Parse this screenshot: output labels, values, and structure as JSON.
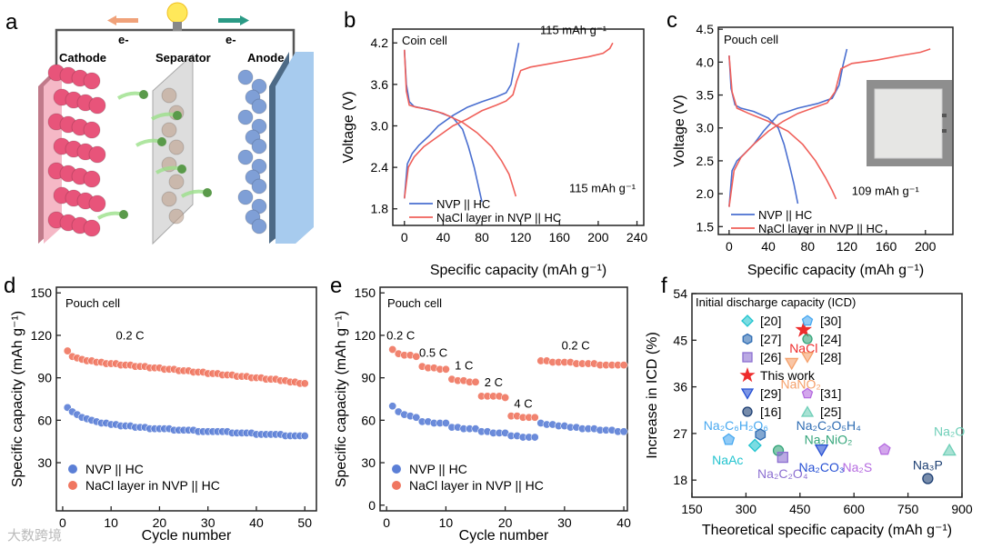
{
  "panel_letters": [
    "a",
    "b",
    "c",
    "d",
    "e",
    "f"
  ],
  "panel_a": {
    "cathode": "Cathode",
    "separator": "Separator",
    "anode": "Anode",
    "electron_left": "e-",
    "electron_right": "e-",
    "colors": {
      "cathode": "#e8547a",
      "anode": "#7f9fd6",
      "separator": "#cfcfcf",
      "arrow_left": "#f0a27a",
      "arrow_right": "#2a9a85"
    }
  },
  "watermark": "大数跨境",
  "chart_data": [
    {
      "id": "b",
      "type": "line",
      "title": "Coin cell",
      "xlabel": "Specific capacity (mAh g⁻¹)",
      "ylabel": "Voltage (V)",
      "xlim": [
        -12,
        247
      ],
      "ylim": [
        1.56,
        4.4
      ],
      "xticks": [
        0,
        40,
        80,
        120,
        160,
        200,
        240
      ],
      "yticks": [
        1.8,
        2.4,
        3.0,
        3.6,
        4.2
      ],
      "legend": [
        "NVP || HC",
        "NaCl layer in NVP || HC"
      ],
      "legend_position": "bottom-left",
      "series": [
        {
          "name": "NVP || HC charge",
          "color": "#4a6fd0",
          "x": [
            0,
            3,
            8,
            15,
            25,
            35,
            50,
            65,
            80,
            95,
            105,
            110,
            114,
            118
          ],
          "y": [
            1.95,
            2.45,
            2.6,
            2.72,
            2.85,
            3.0,
            3.15,
            3.27,
            3.35,
            3.42,
            3.48,
            3.6,
            3.9,
            4.2
          ]
        },
        {
          "name": "NVP || HC discharge",
          "color": "#4a6fd0",
          "x": [
            0,
            2,
            5,
            10,
            20,
            35,
            50,
            60,
            66,
            72,
            76,
            80
          ],
          "y": [
            4.1,
            3.6,
            3.35,
            3.28,
            3.25,
            3.2,
            3.12,
            2.95,
            2.7,
            2.4,
            2.15,
            1.9
          ]
        },
        {
          "name": "NaCl layer in NVP || HC charge",
          "color": "#f0605a",
          "x": [
            0,
            4,
            10,
            20,
            35,
            50,
            65,
            80,
            95,
            105,
            112,
            116,
            120,
            130,
            150,
            170,
            190,
            205,
            212,
            215
          ],
          "y": [
            1.95,
            2.4,
            2.55,
            2.7,
            2.85,
            3.0,
            3.1,
            3.22,
            3.3,
            3.36,
            3.45,
            3.65,
            3.8,
            3.85,
            3.9,
            3.95,
            4.0,
            4.05,
            4.12,
            4.2
          ]
        },
        {
          "name": "NaCl layer in NVP || HC discharge",
          "color": "#f0605a",
          "x": [
            0,
            2,
            5,
            12,
            25,
            40,
            60,
            75,
            90,
            100,
            108,
            112,
            115
          ],
          "y": [
            4.1,
            3.5,
            3.3,
            3.27,
            3.24,
            3.18,
            3.05,
            2.9,
            2.7,
            2.5,
            2.3,
            2.12,
            1.98
          ]
        }
      ],
      "annotations": [
        {
          "text": "115 mAh g⁻¹",
          "x": 140,
          "y": 4.33
        },
        {
          "text": "115 mAh g⁻¹",
          "x": 170,
          "y": 2.04
        }
      ]
    },
    {
      "id": "c",
      "type": "line",
      "title": "Pouch cell",
      "xlabel": "Specific capacity (mAh g⁻¹)",
      "ylabel": "Voltage (V)",
      "xlim": [
        -11,
        228
      ],
      "ylim": [
        1.38,
        4.53
      ],
      "xticks": [
        0,
        40,
        80,
        120,
        160,
        200
      ],
      "yticks": [
        1.5,
        2.0,
        2.5,
        3.0,
        3.5,
        4.0,
        4.5
      ],
      "legend": [
        "NVP || HC",
        "NaCl layer in NVP || HC"
      ],
      "legend_position": "bottom-left",
      "series": [
        {
          "name": "NVP || HC charge",
          "color": "#4a6fd0",
          "x": [
            0,
            3,
            8,
            15,
            25,
            35,
            50,
            70,
            90,
            105,
            112,
            116,
            120
          ],
          "y": [
            1.8,
            2.35,
            2.5,
            2.6,
            2.75,
            2.95,
            3.2,
            3.3,
            3.37,
            3.45,
            3.65,
            3.95,
            4.2
          ]
        },
        {
          "name": "NVP || HC discharge",
          "color": "#4a6fd0",
          "x": [
            0,
            2,
            6,
            12,
            25,
            40,
            50,
            56,
            62,
            66,
            70
          ],
          "y": [
            4.1,
            3.6,
            3.35,
            3.3,
            3.25,
            3.15,
            3.0,
            2.75,
            2.4,
            2.15,
            1.85
          ]
        },
        {
          "name": "NaCl layer in NVP || HC charge",
          "color": "#f0605a",
          "x": [
            0,
            5,
            12,
            25,
            40,
            55,
            70,
            85,
            100,
            108,
            114,
            125,
            150,
            175,
            195,
            205
          ],
          "y": [
            1.8,
            2.35,
            2.55,
            2.75,
            2.95,
            3.1,
            3.22,
            3.3,
            3.38,
            3.55,
            3.9,
            3.98,
            4.03,
            4.1,
            4.15,
            4.2
          ]
        },
        {
          "name": "NaCl layer in NVP || HC discharge",
          "color": "#f0605a",
          "x": [
            0,
            3,
            8,
            20,
            40,
            60,
            75,
            88,
            98,
            105,
            109
          ],
          "y": [
            4.1,
            3.55,
            3.3,
            3.22,
            3.1,
            2.95,
            2.75,
            2.5,
            2.25,
            2.05,
            1.92
          ]
        }
      ],
      "annotations": [
        {
          "text": "109 mAh g⁻¹",
          "x": 125,
          "y": 1.98
        }
      ],
      "inset": "pouch-cell-photo"
    },
    {
      "id": "d",
      "type": "scatter",
      "title": "Pouch cell",
      "xlabel": "Cycle number",
      "ylabel": "Specific capacity (mAh g⁻¹)",
      "xlim": [
        -1.3,
        52.4
      ],
      "ylim": [
        -4,
        154
      ],
      "xticks": [
        0,
        10,
        20,
        30,
        40,
        50
      ],
      "yticks": [
        30,
        60,
        90,
        120,
        150
      ],
      "legend": [
        "NVP || HC",
        "NaCl layer in NVP || HC"
      ],
      "legend_position": "bottom-left",
      "series": [
        {
          "name": "NVP || HC",
          "color": "#5b7fd6",
          "x_start": 1,
          "values": [
            69,
            66,
            64,
            62,
            61,
            60,
            59,
            58,
            58,
            57,
            57,
            56,
            56,
            56,
            55,
            55,
            55,
            54,
            54,
            54,
            54,
            54,
            53,
            53,
            53,
            53,
            53,
            52,
            52,
            52,
            52,
            52,
            52,
            52,
            51,
            51,
            51,
            51,
            51,
            50,
            50,
            50,
            50,
            50,
            50,
            49,
            49,
            49,
            49,
            49
          ]
        },
        {
          "name": "NaCl layer in NVP || HC",
          "color": "#f07660",
          "x_start": 1,
          "values": [
            109,
            105,
            104,
            103,
            102,
            102,
            101,
            101,
            100,
            100,
            100,
            99,
            99,
            99,
            98,
            98,
            98,
            97,
            97,
            97,
            96,
            96,
            96,
            95,
            95,
            95,
            94,
            94,
            94,
            93,
            93,
            93,
            92,
            92,
            92,
            91,
            91,
            91,
            90,
            90,
            90,
            89,
            89,
            89,
            88,
            88,
            87,
            87,
            86,
            86
          ]
        }
      ],
      "annotations": [
        {
          "text": "0.2 C",
          "x": 11,
          "y": 117
        }
      ]
    },
    {
      "id": "e",
      "type": "scatter",
      "title": "Pouch cell",
      "xlabel": "Cycle number",
      "ylabel": "Specific capacity (mAh g⁻¹)",
      "xlim": [
        -1.1,
        40.6
      ],
      "ylim": [
        -4,
        154
      ],
      "xticks": [
        0,
        10,
        20,
        30,
        40
      ],
      "yticks": [
        0,
        30,
        60,
        90,
        120,
        150
      ],
      "legend": [
        "NVP || HC",
        "NaCl layer in NVP || HC"
      ],
      "legend_position": "bottom-left",
      "series": [
        {
          "name": "NVP || HC",
          "color": "#5b7fd6",
          "x_start": 1,
          "values": [
            70,
            66,
            64,
            63,
            62,
            59,
            59,
            58,
            58,
            58,
            55,
            55,
            54,
            54,
            54,
            52,
            52,
            51,
            51,
            51,
            49,
            49,
            48,
            48,
            48,
            58,
            57,
            57,
            56,
            56,
            55,
            55,
            54,
            54,
            54,
            53,
            53,
            53,
            52,
            52
          ]
        },
        {
          "name": "NaCl layer in NVP || HC",
          "color": "#f07660",
          "x_start": 1,
          "values": [
            110,
            107,
            106,
            106,
            105,
            98,
            97,
            97,
            96,
            96,
            89,
            88,
            88,
            87,
            87,
            77,
            77,
            77,
            77,
            76,
            63,
            63,
            62,
            62,
            62,
            102,
            102,
            101,
            101,
            101,
            101,
            100,
            100,
            100,
            100,
            99,
            99,
            99,
            99,
            99
          ]
        }
      ],
      "annotations": [
        {
          "text": "0.2 C",
          "x": 0,
          "y": 117
        },
        {
          "text": "0.5 C",
          "x": 5.5,
          "y": 105
        },
        {
          "text": "1 C",
          "x": 11.5,
          "y": 96
        },
        {
          "text": "2 C",
          "x": 16.5,
          "y": 84
        },
        {
          "text": "4 C",
          "x": 21.5,
          "y": 69
        },
        {
          "text": "0.2 C",
          "x": 29.5,
          "y": 110
        }
      ]
    },
    {
      "id": "f",
      "type": "scatter",
      "title": "Initial discharge capacity (ICD)",
      "xlabel": "Theoretical specific capacity (mAh g⁻¹)",
      "ylabel": "Increase in ICD (%)",
      "xlim": [
        150,
        900
      ],
      "ylim": [
        14.7,
        54
      ],
      "xticks": [
        150,
        300,
        450,
        600,
        750,
        900
      ],
      "yticks": [
        18,
        27,
        36,
        45,
        54
      ],
      "legend_position": "top-right",
      "points": [
        {
          "label": "NaCl",
          "ref": "This work",
          "x": 460,
          "y": 47,
          "marker": "star",
          "color": "#ee2c2c",
          "lx": 0,
          "ly": -3.5
        },
        {
          "label": "NaNO₂",
          "ref": "[28]",
          "x": 427,
          "y": 40.5,
          "marker": "tri-down",
          "color": "#f5a06a",
          "lx": 10,
          "ly": -4
        },
        {
          "label": "Na₂C₆H₂O₆",
          "ref": "[30]",
          "x": 252,
          "y": 25.8,
          "marker": "pentagon",
          "color": "#47a8f0",
          "lx": 8,
          "ly": 2.8
        },
        {
          "label": "Na₂C₂O₅H₄",
          "ref": "[27]",
          "x": 340,
          "y": 26.8,
          "marker": "hexagon",
          "color": "#2e6cb3",
          "lx": 75,
          "ly": 1.8
        },
        {
          "label": "NaAc",
          "ref": "[20]",
          "x": 325,
          "y": 24.7,
          "marker": "diamond",
          "color": "#23c4cf",
          "lx": -30,
          "ly": -2.8
        },
        {
          "label": "Na₂NiO₂",
          "ref": "[24]",
          "x": 390,
          "y": 23.7,
          "marker": "circle",
          "color": "#34a57a",
          "lx": 55,
          "ly": 2.1
        },
        {
          "label": "Na₂C₂O₄",
          "ref": "[26]",
          "x": 402,
          "y": 22.4,
          "marker": "square",
          "color": "#8c6fd1",
          "lx": 0,
          "ly": -3.1
        },
        {
          "label": "Na₂CO₃",
          "ref": "[29]",
          "x": 510,
          "y": 23.8,
          "marker": "tri-down",
          "color": "#2650d4",
          "lx": 0,
          "ly": -3.3
        },
        {
          "label": "Na₂S",
          "ref": "[31]",
          "x": 685,
          "y": 23.9,
          "marker": "pentagon",
          "color": "#b56be0",
          "lx": -30,
          "ly": -3.4
        },
        {
          "label": "Na₃P",
          "ref": "[16]",
          "x": 805,
          "y": 18.3,
          "marker": "circle",
          "color": "#1d3f73",
          "lx": 0,
          "ly": 2.6
        },
        {
          "label": "Na₂O",
          "ref": "[25]",
          "x": 865,
          "y": 23.8,
          "marker": "tri-up",
          "color": "#6fcfb8",
          "lx": 0,
          "ly": 3.6
        }
      ],
      "legend": [
        {
          "text": "[20]",
          "marker": "diamond",
          "color": "#23c4cf"
        },
        {
          "text": "[30]",
          "marker": "pentagon",
          "color": "#47a8f0"
        },
        {
          "text": "[27]",
          "marker": "hexagon",
          "color": "#2e6cb3"
        },
        {
          "text": "[24]",
          "marker": "circle",
          "color": "#34a57a"
        },
        {
          "text": "[26]",
          "marker": "square",
          "color": "#8c6fd1"
        },
        {
          "text": "[28]",
          "marker": "tri-down",
          "color": "#f5a06a"
        },
        {
          "text": "This work",
          "marker": "star",
          "color": "#ee2c2c"
        },
        {
          "text": "[29]",
          "marker": "tri-down",
          "color": "#2650d4"
        },
        {
          "text": "[31]",
          "marker": "pentagon",
          "color": "#b56be0"
        },
        {
          "text": "[16]",
          "marker": "circle",
          "color": "#1d3f73"
        },
        {
          "text": "[25]",
          "marker": "tri-up",
          "color": "#6fcfb8"
        }
      ]
    }
  ]
}
